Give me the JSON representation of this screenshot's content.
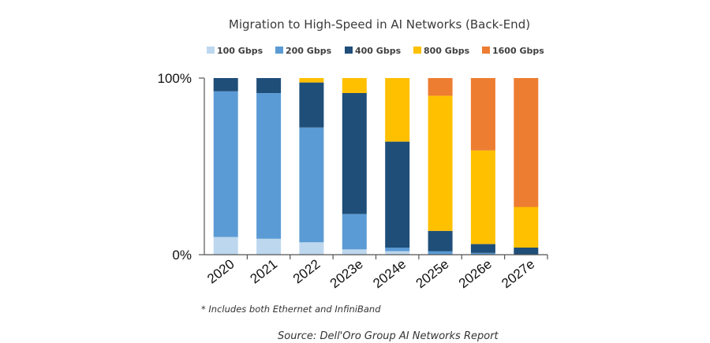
{
  "chart_data": {
    "type": "bar",
    "stacked": true,
    "normalized": true,
    "title": "Migration to High-Speed in AI Networks (Back-End)",
    "xlabel": "",
    "ylabel": "",
    "ylim": [
      0,
      100
    ],
    "yticks": [
      "0%",
      "100%"
    ],
    "grid": false,
    "legend_position": "top",
    "categories": [
      "2020",
      "2021",
      "2022",
      "2023e",
      "2024e",
      "2025e",
      "2026e",
      "2027e"
    ],
    "series": [
      {
        "name": "100 Gbps",
        "color": "#bdd7ee",
        "values": [
          10,
          9,
          7,
          3,
          2,
          0,
          0,
          0
        ]
      },
      {
        "name": "200 Gbps",
        "color": "#5b9bd5",
        "values": [
          82.5,
          82.5,
          65,
          20,
          2,
          2,
          1,
          0
        ]
      },
      {
        "name": "400 Gbps",
        "color": "#1f4e79",
        "values": [
          7.5,
          8.5,
          25.5,
          68.5,
          60,
          11.5,
          5,
          4
        ]
      },
      {
        "name": "800 Gbps",
        "color": "#ffc000",
        "values": [
          0,
          0,
          2.5,
          8.5,
          36,
          76.5,
          53,
          23
        ]
      },
      {
        "name": "1600 Gbps",
        "color": "#ed7d31",
        "values": [
          0,
          0,
          0,
          0,
          0,
          10,
          41,
          73
        ]
      }
    ],
    "annotations": [
      "* Includes both Ethernet and InfiniBand"
    ],
    "source": "Source:  Dell'Oro Group AI Networks Report"
  }
}
